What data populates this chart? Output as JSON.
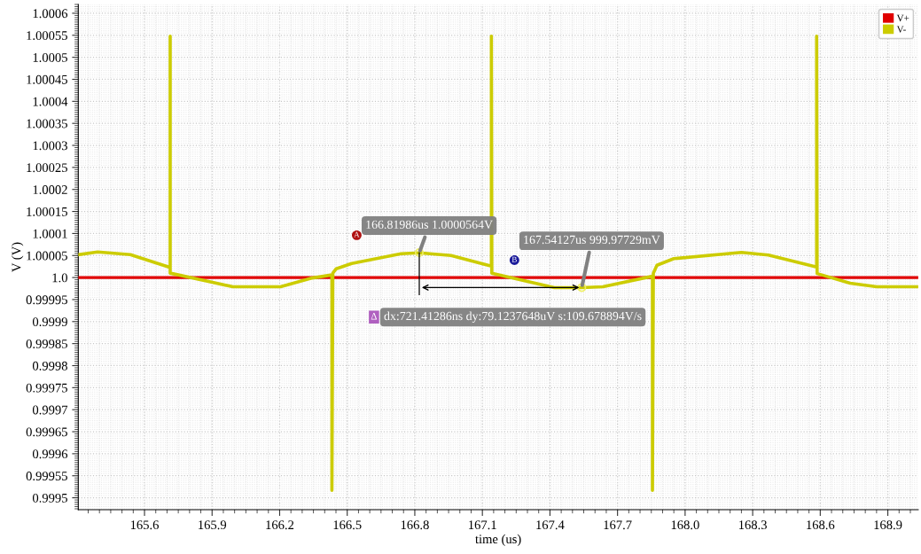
{
  "chart_data": {
    "type": "line",
    "xlabel": "time (us)",
    "ylabel": "V (V)",
    "xlim": [
      165.306,
      169.035
    ],
    "ylim": [
      0.999473,
      1.00062
    ],
    "xticks": [
      165.6,
      165.9,
      166.2,
      166.5,
      166.8,
      167.1,
      167.4,
      167.7,
      {
        "value": 168,
        "label": "168.0"
      },
      168.3,
      168.6,
      168.9
    ],
    "yticks": [
      0.9995,
      0.99955,
      0.9996,
      0.99965,
      0.9997,
      0.99975,
      0.9998,
      0.99985,
      0.9999,
      0.99995,
      {
        "value": 1,
        "label": "1.0"
      },
      1.00005,
      1.0001,
      1.00015,
      1.0002,
      1.00025,
      1.0003,
      1.00035,
      1.0004,
      1.00045,
      1.0005,
      1.00055,
      1.0006
    ],
    "grid": true,
    "legend": "top right",
    "line_style": "solid",
    "marker": "none",
    "series": [
      {
        "name": "V+",
        "color": "#e00000",
        "x": [
          165.306,
          169.035
        ],
        "values": [
          1.0,
          1.0
        ]
      },
      {
        "name": "V-",
        "color": "#cccc00",
        "x": [
          165.306,
          165.392,
          165.537,
          165.714,
          165.714,
          165.714,
          165.902,
          165.992,
          166.204,
          166.345,
          166.432,
          166.432,
          166.436,
          166.451,
          166.52,
          166.739,
          166.82,
          166.961,
          167.14,
          167.14,
          167.142,
          167.42,
          167.541,
          167.635,
          167.855,
          167.855,
          167.859,
          167.875,
          167.95,
          168.25,
          168.37,
          168.584,
          168.584,
          168.586,
          168.733,
          168.85,
          169.035
        ],
        "values": [
          1.000052,
          1.000058,
          1.000052,
          1.000023,
          1.000548,
          1.00001,
          0.999989,
          0.999979,
          0.999979,
          0.999999,
          1.000006,
          0.999517,
          1.00001,
          1.00002,
          1.000032,
          1.000054,
          1.000056,
          1.00005,
          1.000026,
          1.000548,
          1.00001,
          0.999977,
          0.999977,
          0.999979,
          1.000003,
          0.999517,
          1.00001,
          1.000028,
          1.000043,
          1.000057,
          1.000051,
          1.000024,
          1.000548,
          1.000009,
          0.999987,
          0.999979,
          0.999979
        ]
      }
    ],
    "annotations": [
      "A",
      {
        "text": "166.81986us 1.0000564V",
        "x": 166.81986,
        "y": 1.0000564
      },
      "B",
      {
        "text": "167.54127us 999.97729mV",
        "x": 167.54127,
        "y": 0.99997729
      },
      "Δ",
      "dx:721.41286ns dy:79.1237648uV s:109.678894V/s"
    ]
  }
}
